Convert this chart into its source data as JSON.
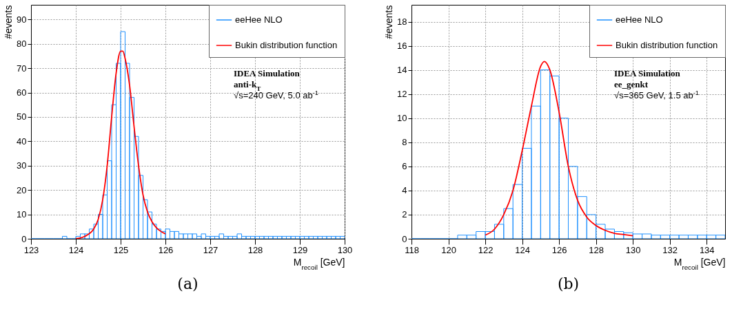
{
  "chart_data": [
    {
      "type": "histogram",
      "title": "(a)",
      "xlabel": "M$_{recoil}$ [GeV]",
      "ylabel": "#events",
      "annotations": [
        "IDEA Simulation",
        "anti-k$_{T}$",
        "√s=240 GeV, 5.0 ab$^{-1}$"
      ],
      "bins": [
        123.0,
        123.1,
        123.2,
        123.3,
        123.4,
        123.5,
        123.6,
        123.7,
        123.8,
        123.9,
        124.0,
        124.1,
        124.2,
        124.3,
        124.4,
        124.5,
        124.6,
        124.7,
        124.8,
        124.9,
        125.0,
        125.1,
        125.2,
        125.3,
        125.4,
        125.5,
        125.6,
        125.7,
        125.8,
        125.9,
        126.0,
        126.1,
        126.2,
        126.3,
        126.4,
        126.5,
        126.6,
        126.7,
        126.8,
        126.9,
        127.0,
        127.1,
        127.2,
        127.3,
        127.4,
        127.5,
        127.6,
        127.7,
        127.8,
        127.9,
        128.0,
        128.1,
        128.2,
        128.3,
        128.4,
        128.5,
        128.6,
        128.7,
        128.8,
        128.9,
        129.0,
        129.1,
        129.2,
        129.3,
        129.4,
        129.5,
        129.6,
        129.7,
        129.8,
        129.9,
        130.0
      ],
      "series": [
        {
          "name": "eeHee NLO",
          "color": "#1e90ff",
          "values": [
            0,
            0,
            0,
            0,
            0,
            0,
            0,
            1,
            0,
            0,
            1,
            2,
            2,
            4,
            6,
            10,
            18,
            32,
            55,
            72,
            85,
            72,
            58,
            42,
            26,
            16,
            11,
            6,
            4,
            3,
            4,
            3,
            3,
            2,
            2,
            2,
            2,
            1,
            2,
            1,
            1,
            1,
            2,
            1,
            1,
            1,
            2,
            1,
            1,
            1,
            1,
            1,
            1,
            1,
            1,
            1,
            1,
            1,
            1,
            1,
            1,
            1,
            1,
            1,
            1,
            1,
            1,
            1,
            1,
            1
          ]
        },
        {
          "type": "line",
          "name": "Bukin distribution function",
          "color": "#ff0000",
          "x": [
            124.0,
            124.2,
            124.4,
            124.5,
            124.6,
            124.7,
            124.8,
            124.9,
            125.0,
            125.05,
            125.1,
            125.2,
            125.3,
            125.4,
            125.5,
            125.6,
            125.7,
            125.8,
            125.9,
            126.0
          ],
          "values": [
            0,
            1,
            4,
            8,
            16,
            30,
            50,
            68,
            77,
            77,
            74,
            63,
            46,
            30,
            18,
            11,
            7,
            4.5,
            3,
            2
          ]
        }
      ],
      "xlim": [
        123,
        130
      ],
      "xticks": [
        123,
        124,
        125,
        126,
        127,
        128,
        129,
        130
      ],
      "ylim": [
        0,
        96
      ],
      "yticks": [
        0,
        10,
        20,
        30,
        40,
        50,
        60,
        70,
        80,
        90
      ],
      "grid": true,
      "legend": "top right"
    },
    {
      "type": "histogram",
      "title": "(b)",
      "xlabel": "M$_{recoil}$ [GeV]",
      "ylabel": "#events",
      "annotations": [
        "IDEA Simulation",
        "ee_genkt",
        "√s=365 GeV, 1.5 ab$^{-1}$"
      ],
      "bins": [
        118,
        118.5,
        119,
        119.5,
        120,
        120.5,
        121,
        121.5,
        122,
        122.5,
        123,
        123.5,
        124,
        124.5,
        125,
        125.5,
        126,
        126.5,
        127,
        127.5,
        128,
        128.5,
        129,
        129.5,
        130,
        130.5,
        131,
        131.5,
        132,
        132.5,
        133,
        133.5,
        134,
        134.5,
        135
      ],
      "series": [
        {
          "name": "eeHee NLO",
          "color": "#1e90ff",
          "values": [
            0,
            0,
            0,
            0,
            0,
            0.3,
            0.3,
            0.6,
            0.6,
            1.2,
            2.5,
            4.5,
            7.5,
            11,
            14,
            13.5,
            10,
            6,
            3.5,
            2,
            1.2,
            0.8,
            0.6,
            0.5,
            0.4,
            0.4,
            0.3,
            0.3,
            0.3,
            0.3,
            0.3,
            0.3,
            0.3,
            0.3
          ]
        },
        {
          "type": "line",
          "name": "Bukin distribution function",
          "color": "#ff0000",
          "x": [
            122,
            122.5,
            123,
            123.5,
            124,
            124.5,
            125,
            125.2,
            125.5,
            126,
            126.5,
            127,
            127.5,
            128,
            128.5,
            129,
            129.5,
            130
          ],
          "values": [
            0.3,
            0.8,
            2,
            4,
            7.3,
            11,
            14.3,
            14.7,
            14,
            10.5,
            6,
            3.2,
            1.8,
            1.1,
            0.7,
            0.45,
            0.35,
            0.25
          ]
        }
      ],
      "xlim": [
        118,
        135
      ],
      "xticks": [
        118,
        120,
        122,
        124,
        126,
        128,
        130,
        132,
        134
      ],
      "ylim": [
        0,
        19.4
      ],
      "yticks": [
        0,
        2,
        4,
        6,
        8,
        10,
        12,
        14,
        16,
        18
      ],
      "grid": true,
      "legend": "top right"
    }
  ]
}
